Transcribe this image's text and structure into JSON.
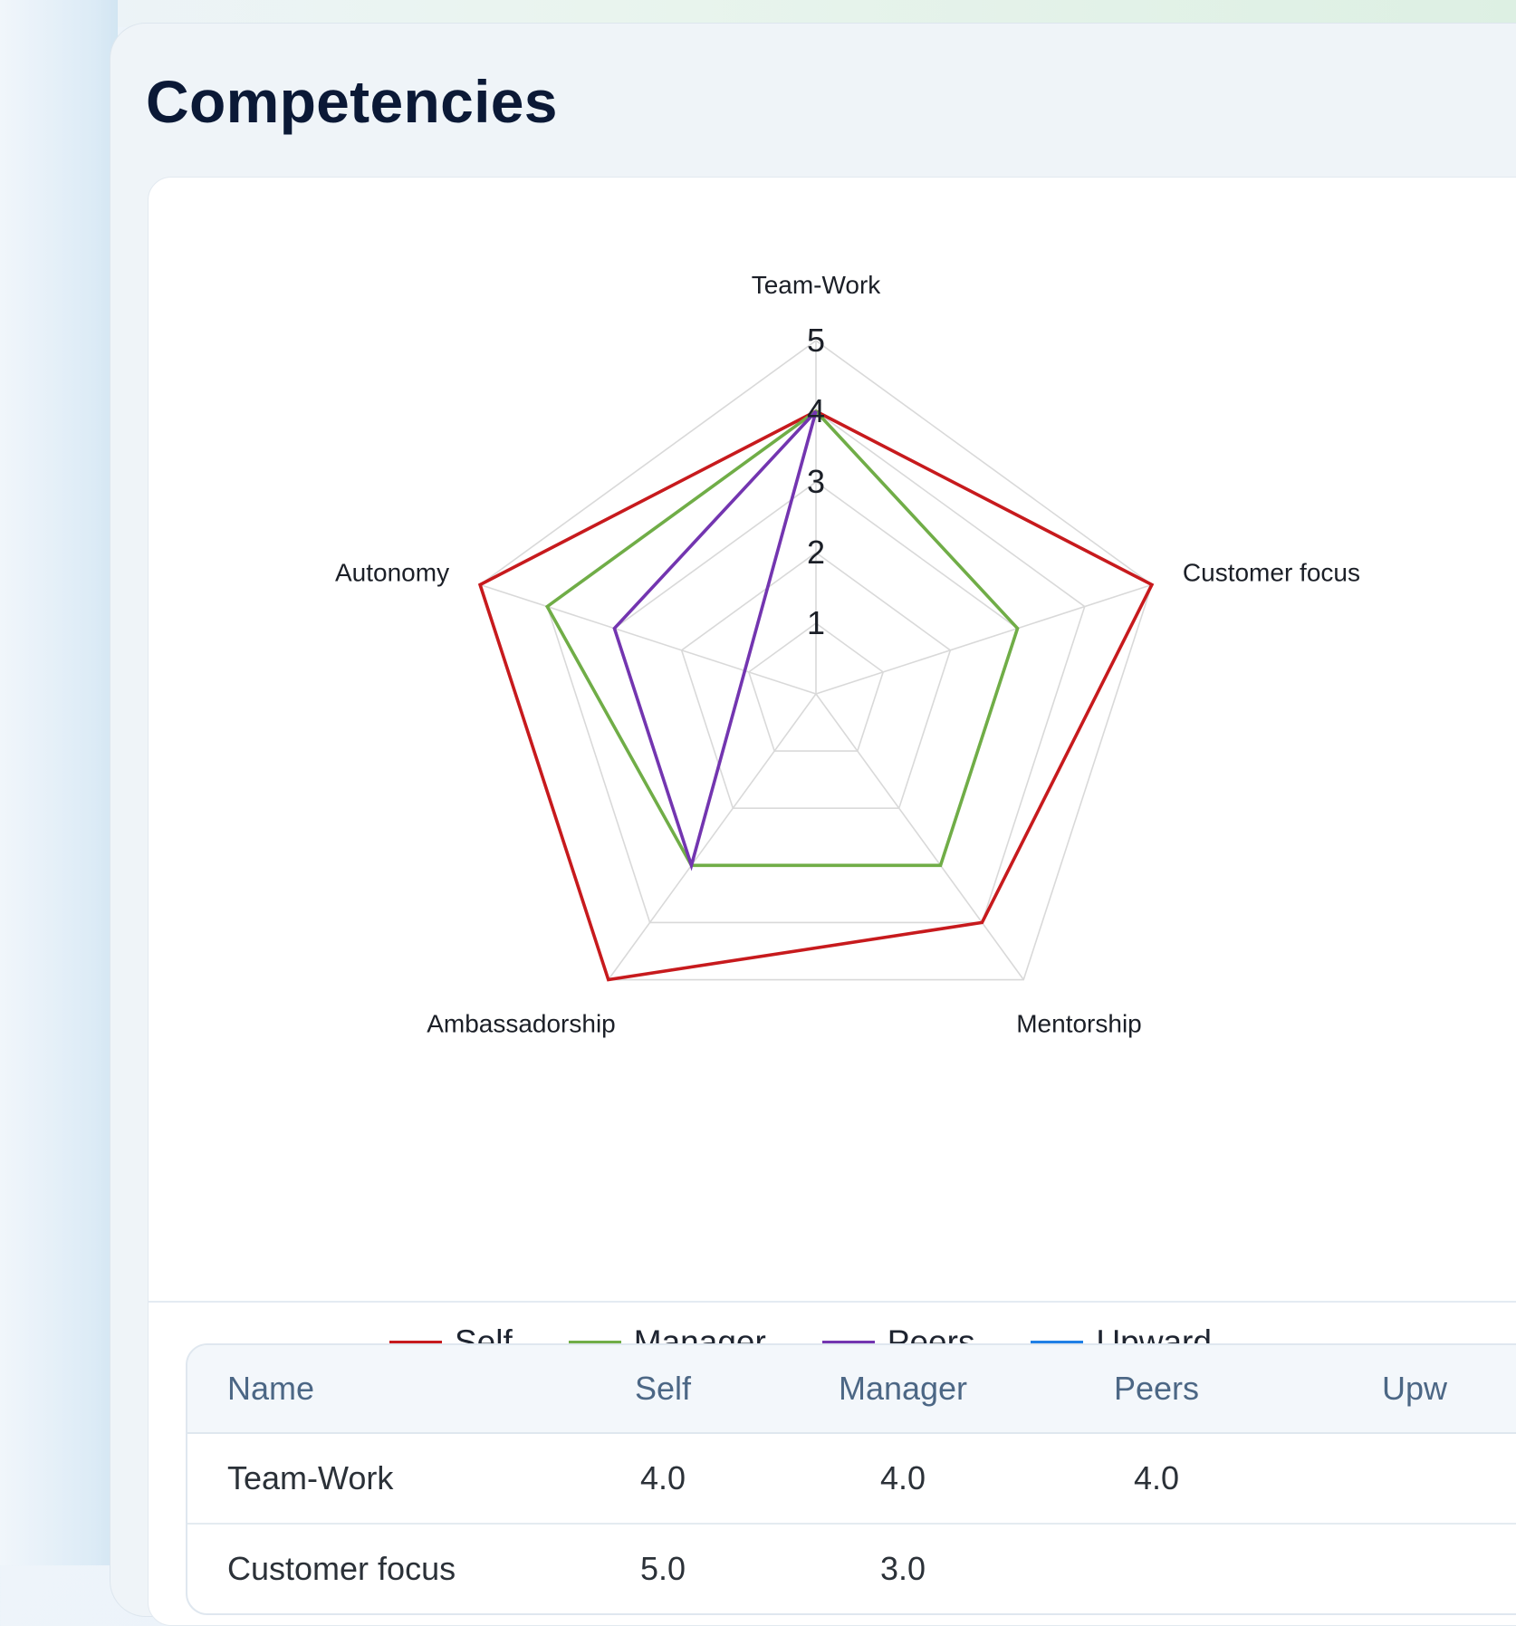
{
  "page": {
    "title": "Competencies"
  },
  "chart_data": {
    "type": "radar",
    "axes": [
      "Team-Work",
      "Customer focus",
      "Mentorship",
      "Ambassadorship",
      "Autonomy"
    ],
    "scale": {
      "min": 0,
      "max": 5,
      "ticks": [
        "1",
        "2",
        "3",
        "4",
        "5"
      ]
    },
    "series": [
      {
        "name": "Self",
        "color": "#c71a1d",
        "values": [
          4,
          5,
          4,
          5,
          5
        ]
      },
      {
        "name": "Manager",
        "color": "#70ad47",
        "values": [
          4,
          3,
          3,
          3,
          4
        ]
      },
      {
        "name": "Peers",
        "color": "#7335b0",
        "values": [
          4,
          null,
          null,
          3,
          3
        ]
      },
      {
        "name": "Upward",
        "color": "#1f7fe6",
        "values": []
      }
    ],
    "legend_position": "bottom"
  },
  "table": {
    "headers": [
      "Name",
      "Self",
      "Manager",
      "Peers",
      "Upw"
    ],
    "rows": [
      [
        "Team-Work",
        "4.0",
        "4.0",
        "4.0",
        ""
      ],
      [
        "Customer focus",
        "5.0",
        "3.0",
        "",
        ""
      ]
    ]
  }
}
